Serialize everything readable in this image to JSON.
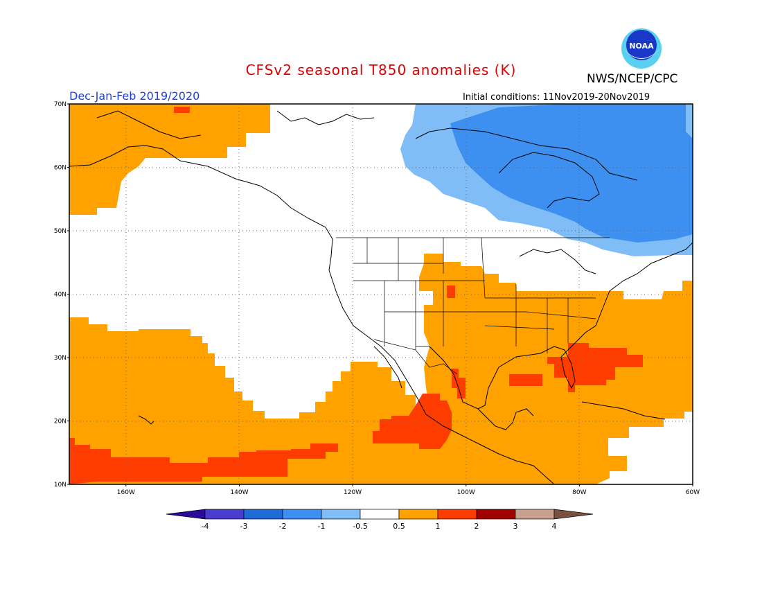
{
  "header": {
    "title": "CFSv2 seasonal T850 anomalies (K)",
    "organization": "NWS/NCEP/CPC",
    "season": "Dec-Jan-Feb 2019/2020",
    "initial_conditions": "Initial conditions: 11Nov2019-20Nov2019",
    "logo_text": "NOAA"
  },
  "axes": {
    "lat_labels": [
      "70N",
      "60N",
      "50N",
      "40N",
      "30N",
      "20N",
      "10N"
    ],
    "lon_labels": [
      "160W",
      "140W",
      "120W",
      "100W",
      "80W",
      "60W"
    ],
    "lat_range": [
      10,
      70
    ],
    "lon_range": [
      -170,
      -60
    ]
  },
  "colorbar": {
    "tick_labels": [
      "-4",
      "-3",
      "-2",
      "-1",
      "-0.5",
      "0.5",
      "1",
      "2",
      "3",
      "4"
    ],
    "colors": [
      "#2a0a9a",
      "#4b3cd0",
      "#1e6ad6",
      "#3d8ff0",
      "#80bcf5",
      "#ffffff",
      "#ffa200",
      "#ff3c00",
      "#a00000",
      "#c8a090",
      "#7a5040"
    ]
  },
  "regions": {
    "warm_1_to_2": "#ffa200",
    "warm_2_to_3": "#ff3c00",
    "cool_minus1": "#80bcf5",
    "cool_minus2": "#3d8ff0"
  }
}
